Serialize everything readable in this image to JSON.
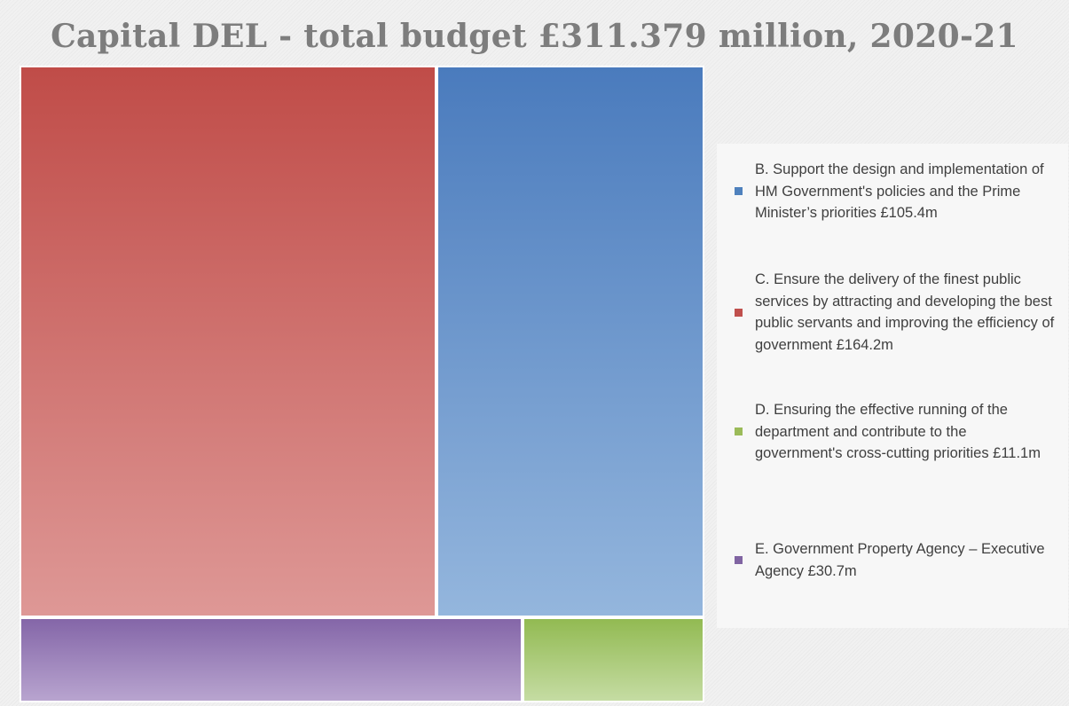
{
  "chart_data": {
    "type": "treemap",
    "title": "Capital DEL - total budget £311.379 million, 2020-21",
    "units": "£m",
    "legend_position": "right",
    "series": [
      {
        "key": "B",
        "label": "B. Support the design and implementation of HM Government's policies and the Prime Minister’s priorities £105.4m",
        "value": 105.4,
        "color": "#4f81bd"
      },
      {
        "key": "C",
        "label": "C. Ensure the delivery of the finest public services by attracting and developing the best public servants and improving the efficiency of government £164.2m",
        "value": 164.2,
        "color": "#c0504d"
      },
      {
        "key": "D",
        "label": "D. Ensuring the effective running of the department and contribute to the government's cross-cutting priorities £11.1m",
        "value": 11.1,
        "color": "#9bbb59"
      },
      {
        "key": "E",
        "label": "E. Government Property Agency – Executive Agency £30.7m",
        "value": 30.7,
        "color": "#8064a2"
      }
    ],
    "tile_gradients": {
      "B": [
        "#4a7bbd",
        "#94b6dd"
      ],
      "C": [
        "#c04c48",
        "#de9896"
      ],
      "D": [
        "#92ba52",
        "#c5dca3"
      ],
      "E": [
        "#8466a8",
        "#b8a4cf"
      ]
    }
  }
}
